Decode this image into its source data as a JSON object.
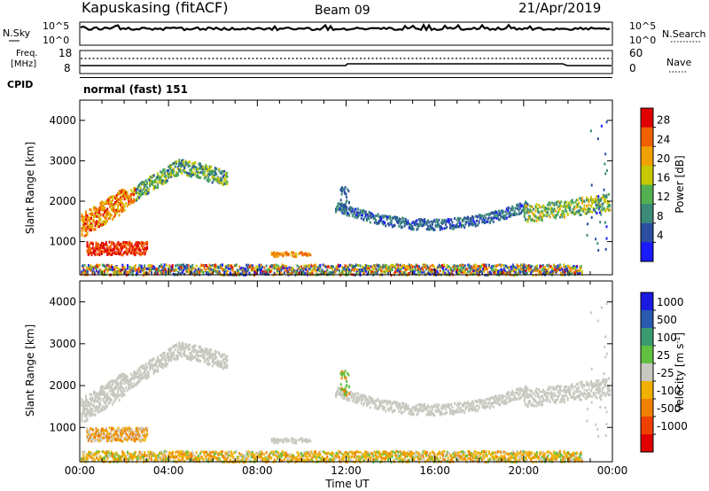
{
  "header": {
    "station": "Kapuskasing (fitACF)",
    "beam": "Beam 09",
    "date": "21/Apr/2019"
  },
  "noise_panel": {
    "left_label": "N.Sky",
    "right_label": "N.Search",
    "left_ticks": [
      "10^5",
      "10^0"
    ],
    "right_ticks": [
      "10^5",
      "10^0"
    ]
  },
  "freq_panel": {
    "left_label_line1": "Freq.",
    "left_label_line2": "[MHz]",
    "left_ticks": [
      "18",
      "8"
    ],
    "right_label": "Nave",
    "right_ticks": [
      "60",
      "0"
    ]
  },
  "cpid": {
    "label": "CPID",
    "mode": "normal (fast) 151"
  },
  "x_axis": {
    "label": "Time UT",
    "ticks": [
      "00:00",
      "04:00",
      "08:00",
      "12:00",
      "16:00",
      "20:00",
      "00:00"
    ]
  },
  "colors": {
    "power": [
      "#1a1aff",
      "#2a4fa0",
      "#3c8a78",
      "#52b050",
      "#c8c800",
      "#f0a000",
      "#f06000",
      "#e00000"
    ],
    "velocity": [
      "#e00000",
      "#f04000",
      "#f08000",
      "#f0b000",
      "#c8c8c0",
      "#60c040",
      "#3a9a70",
      "#2a5ab0",
      "#1a1ae0"
    ],
    "trace": "#000000"
  },
  "chart_data": [
    {
      "type": "heatmap",
      "title": "Power",
      "ylabel": "Slant Range [km]",
      "xlabel": "",
      "x_range_hours": [
        0,
        24
      ],
      "ylim": [
        180,
        4500
      ],
      "y_ticks": [
        1000,
        2000,
        3000,
        4000
      ],
      "colorbar": {
        "label": "Power [dB]",
        "range": [
          0,
          32
        ],
        "tick_labels": [
          "4",
          "8",
          "12",
          "16",
          "20",
          "24",
          "28"
        ]
      },
      "features": [
        {
          "name": "evening arc",
          "t_start_h": 0.0,
          "t_end_h": 6.5,
          "range_start_km": 1400,
          "range_end_km": 2900,
          "power_db": [
            26,
            8
          ]
        },
        {
          "name": "near range E-region",
          "t_start_h": 0.0,
          "t_end_h": 3.0,
          "range_km": [
            650,
            1000
          ],
          "power_db": 28
        },
        {
          "name": "ionospheric trough band",
          "t_start_h": 11.5,
          "t_end_h": 20.0,
          "range_km": [
            1350,
            1800
          ],
          "power_db": 6
        },
        {
          "name": "morning band",
          "t_start_h": 20.0,
          "t_end_h": 24.0,
          "range_km": [
            1600,
            2200
          ],
          "power_db": 14
        },
        {
          "name": "ground scatter near range",
          "t_start_h": 0.0,
          "t_end_h": 22.5,
          "range_km": [
            200,
            450
          ],
          "power_db": 10
        }
      ]
    },
    {
      "type": "heatmap",
      "title": "Velocity",
      "ylabel": "Slant Range [km]",
      "xlabel": "Time UT",
      "x_range_hours": [
        0,
        24
      ],
      "ylim": [
        180,
        4500
      ],
      "y_ticks": [
        1000,
        2000,
        3000,
        4000
      ],
      "colorbar": {
        "label": "Velocity [m s^-1]",
        "range": [
          -1200,
          1200
        ],
        "tick_labels": [
          "1000",
          "500",
          "100",
          "25",
          "-25",
          "-100",
          "-500",
          "-1000"
        ]
      },
      "features": [
        {
          "name": "evening arc",
          "t_start_h": 0.0,
          "t_end_h": 6.5,
          "range_start_km": 1400,
          "range_end_km": 2900,
          "velocity_ms": 0
        },
        {
          "name": "near range echoes",
          "t_start_h": 1.5,
          "t_end_h": 3.0,
          "range_km": [
            800,
            1000
          ],
          "velocity_ms": -300
        },
        {
          "name": "trough band",
          "t_start_h": 12.0,
          "t_end_h": 20.0,
          "range_km": [
            1350,
            1800
          ],
          "velocity_ms": 0
        },
        {
          "name": "near range drift",
          "t_start_h": 6.0,
          "t_end_h": 18.0,
          "range_km": [
            200,
            450
          ],
          "velocity_ms": -150
        }
      ]
    }
  ]
}
